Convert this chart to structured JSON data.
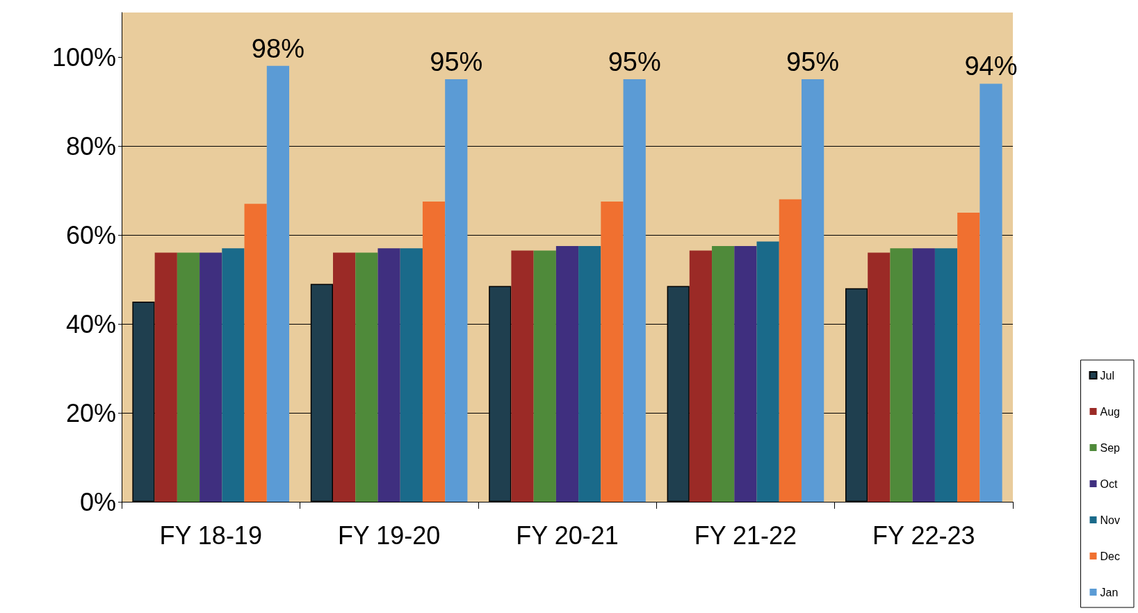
{
  "chart_data": {
    "type": "bar",
    "categories": [
      "FY 18-19",
      "FY 19-20",
      "FY 20-21",
      "FY 21-22",
      "FY 22-23"
    ],
    "series": [
      {
        "name": "Jul",
        "color": "#1f3f4f",
        "values": [
          45,
          49,
          48.5,
          48.5,
          48
        ]
      },
      {
        "name": "Aug",
        "color": "#9b2a26",
        "values": [
          56,
          56,
          56.5,
          56.5,
          56
        ]
      },
      {
        "name": "Sep",
        "color": "#4f8a3a",
        "values": [
          56,
          56,
          56.5,
          57.5,
          57
        ]
      },
      {
        "name": "Oct",
        "color": "#3f2f7f",
        "values": [
          56,
          57,
          57.5,
          57.5,
          57
        ]
      },
      {
        "name": "Nov",
        "color": "#1a6a8a",
        "values": [
          57,
          57,
          57.5,
          58.5,
          57
        ]
      },
      {
        "name": "Dec",
        "color": "#f07030",
        "values": [
          67,
          67.5,
          67.5,
          68,
          65
        ]
      },
      {
        "name": "Jan",
        "color": "#5b9bd5",
        "values": [
          98,
          95,
          95,
          95,
          94
        ],
        "value_labels": [
          "98%",
          "95%",
          "95%",
          "95%",
          "94%"
        ]
      }
    ],
    "ylim": [
      0,
      110
    ],
    "yticks": [
      {
        "value": 0,
        "label": "0%"
      },
      {
        "value": 20,
        "label": "20%"
      },
      {
        "value": 40,
        "label": "40%"
      },
      {
        "value": 60,
        "label": "60%"
      },
      {
        "value": 80,
        "label": "80%"
      },
      {
        "value": 100,
        "label": "100%"
      }
    ],
    "grid": "y",
    "legend": "bottom right"
  }
}
